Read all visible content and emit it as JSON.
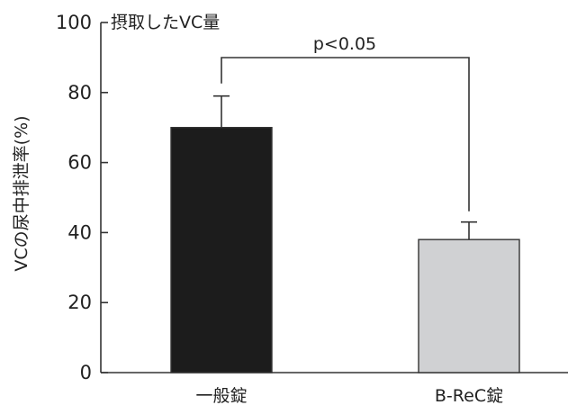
{
  "chart_data": {
    "type": "bar",
    "categories": [
      "一般錠",
      "B-ReC錠"
    ],
    "values": [
      70,
      38
    ],
    "errors": [
      9,
      5
    ],
    "ylabel": "VCの尿中排泄率(%)",
    "ylim": [
      0,
      100
    ],
    "yticks": [
      0,
      20,
      40,
      60,
      80,
      100
    ],
    "grid": false,
    "annotation": "摂取したVC量",
    "significance": {
      "label": "p<0.05",
      "between": [
        0,
        1
      ]
    },
    "colors": [
      "#1c1c1c",
      "#d0d1d3"
    ]
  }
}
